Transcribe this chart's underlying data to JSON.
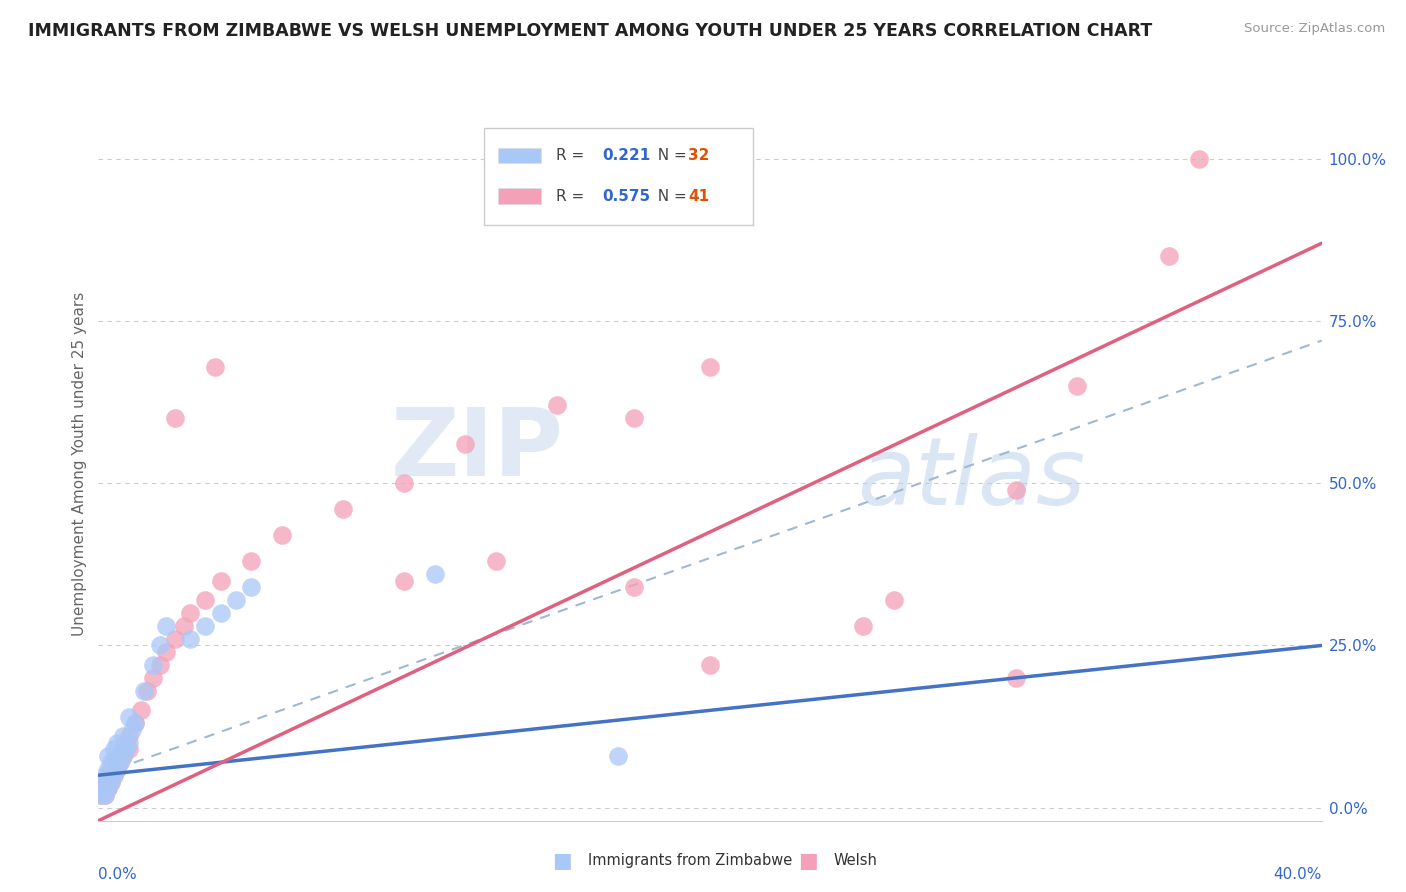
{
  "title": "IMMIGRANTS FROM ZIMBABWE VS WELSH UNEMPLOYMENT AMONG YOUTH UNDER 25 YEARS CORRELATION CHART",
  "source": "Source: ZipAtlas.com",
  "ylabel": "Unemployment Among Youth under 25 years",
  "ytick_labels": [
    "0.0%",
    "25.0%",
    "50.0%",
    "75.0%",
    "100.0%"
  ],
  "ytick_values": [
    0.0,
    0.25,
    0.5,
    0.75,
    1.0
  ],
  "xlim": [
    0.0,
    0.4
  ],
  "ylim": [
    -0.02,
    1.08
  ],
  "legend1_R": "0.221",
  "legend1_N": "32",
  "legend2_R": "0.575",
  "legend2_N": "41",
  "blue_color": "#a8c8f8",
  "pink_color": "#f4a0b8",
  "blue_line_color": "#4472c4",
  "pink_line_color": "#e06080",
  "dash_line_color": "#a0b8d0",
  "watermark1": "ZIP",
  "watermark2": "atlas",
  "blue_x": [
    0.001,
    0.001,
    0.002,
    0.002,
    0.003,
    0.003,
    0.003,
    0.004,
    0.004,
    0.005,
    0.005,
    0.006,
    0.006,
    0.007,
    0.008,
    0.008,
    0.009,
    0.01,
    0.01,
    0.011,
    0.012,
    0.015,
    0.018,
    0.02,
    0.022,
    0.03,
    0.035,
    0.04,
    0.045,
    0.05,
    0.11,
    0.17
  ],
  "blue_y": [
    0.02,
    0.04,
    0.02,
    0.05,
    0.03,
    0.06,
    0.08,
    0.04,
    0.07,
    0.05,
    0.09,
    0.06,
    0.1,
    0.07,
    0.08,
    0.11,
    0.09,
    0.1,
    0.14,
    0.12,
    0.13,
    0.18,
    0.22,
    0.25,
    0.28,
    0.26,
    0.28,
    0.3,
    0.32,
    0.34,
    0.36,
    0.08
  ],
  "pink_x": [
    0.001,
    0.001,
    0.002,
    0.002,
    0.003,
    0.003,
    0.004,
    0.004,
    0.005,
    0.005,
    0.006,
    0.006,
    0.007,
    0.008,
    0.008,
    0.009,
    0.01,
    0.01,
    0.012,
    0.014,
    0.016,
    0.018,
    0.02,
    0.022,
    0.025,
    0.028,
    0.03,
    0.035,
    0.04,
    0.05,
    0.06,
    0.08,
    0.1,
    0.12,
    0.15,
    0.175,
    0.2,
    0.3,
    0.32,
    0.35,
    0.36
  ],
  "pink_y": [
    0.02,
    0.03,
    0.02,
    0.04,
    0.03,
    0.05,
    0.04,
    0.06,
    0.05,
    0.07,
    0.06,
    0.08,
    0.07,
    0.08,
    0.09,
    0.1,
    0.09,
    0.11,
    0.13,
    0.15,
    0.18,
    0.2,
    0.22,
    0.24,
    0.26,
    0.28,
    0.3,
    0.32,
    0.35,
    0.38,
    0.42,
    0.46,
    0.5,
    0.56,
    0.62,
    0.6,
    0.68,
    0.49,
    0.65,
    0.85,
    1.0
  ],
  "pink_outlier_x": [
    0.025,
    0.038,
    0.1,
    0.13,
    0.175,
    0.2,
    0.25,
    0.26,
    0.3
  ],
  "pink_outlier_y": [
    0.6,
    0.68,
    0.35,
    0.38,
    0.34,
    0.22,
    0.28,
    0.32,
    0.2
  ]
}
